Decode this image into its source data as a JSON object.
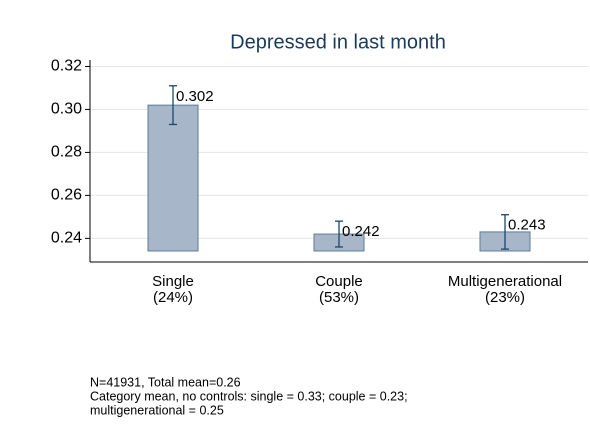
{
  "chart_data": {
    "type": "bar",
    "title": "Depressed in last month",
    "categories": [
      "Single",
      "Couple",
      "Multigenerational"
    ],
    "category_shares": [
      "(24%)",
      "(53%)",
      "(23%)"
    ],
    "values": [
      0.302,
      0.242,
      0.243
    ],
    "errors": [
      0.009,
      0.006,
      0.008
    ],
    "color": "#a7b7c9",
    "edge_color": "#5b7c9b",
    "error_color": "#1a476f",
    "ylim": [
      0.229,
      0.323
    ],
    "yticks": [
      0.24,
      0.26,
      0.28,
      {
        "value": 0.3,
        "label": "0.30"
      },
      0.32
    ],
    "grid": true,
    "notes": [
      "N=41931, Total mean=0.26",
      "Category mean, no controls: single = 0.33; couple = 0.23;",
      "multigenerational = 0.25"
    ]
  }
}
